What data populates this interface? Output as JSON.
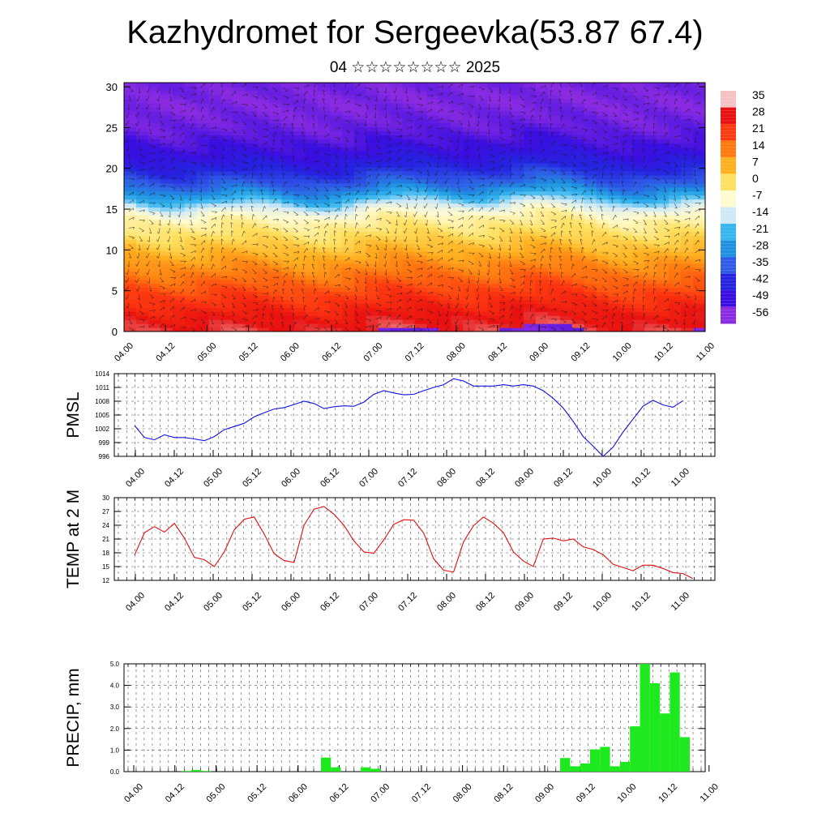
{
  "title": "Kazhydromet for Sergeevka(53.87 67.4)",
  "subtitle": "04 ☆☆☆☆☆☆☆☆ 2025",
  "time_ticks": [
    "04.00",
    "04.12",
    "05.00",
    "05.12",
    "06.00",
    "06.12",
    "07.00",
    "07.12",
    "08.00",
    "08.12",
    "09.00",
    "09.12",
    "10.00",
    "10.12",
    "11.00"
  ],
  "chart_data": [
    {
      "type": "heatmap",
      "title": "",
      "ylabel": "",
      "y_ticks": [
        "0",
        "5",
        "10",
        "15",
        "20",
        "25",
        "30"
      ],
      "ylim": [
        0,
        30.5
      ],
      "colorbar": {
        "labels": [
          "35",
          "28",
          "21",
          "14",
          "7",
          "0",
          "-7",
          "-14",
          "-21",
          "-28",
          "-35",
          "-42",
          "-49",
          "-56"
        ],
        "colors": [
          "#f4c2c2",
          "#e81010",
          "#ff3a10",
          "#ff7a10",
          "#ffb020",
          "#ffe060",
          "#fffbd0",
          "#cfe9f7",
          "#35b6ef",
          "#1f8fe0",
          "#2f5be6",
          "#2424e0",
          "#3a0ee0",
          "#8a2be2"
        ]
      },
      "profile": {
        "heights": [
          0,
          2,
          5,
          8,
          10,
          12,
          14,
          15,
          16,
          17,
          18,
          20,
          22,
          25,
          28,
          30.5
        ],
        "values": [
          30,
          27,
          20,
          12,
          6,
          0,
          -5,
          -10,
          -18,
          -26,
          -33,
          -42,
          -48,
          -53,
          -55,
          -54
        ]
      }
    },
    {
      "type": "line",
      "ylabel": "PMSL",
      "y_ticks": [
        "996",
        "999",
        "1002",
        "1005",
        "1008",
        "1011",
        "1014"
      ],
      "ylim": [
        996,
        1014
      ],
      "series": [
        {
          "color": "#1010e0",
          "values": [
            1002.7,
            1000.1,
            999.6,
            1000.7,
            1000.1,
            1000.1,
            999.8,
            999.4,
            1000.3,
            1001.8,
            1002.5,
            1003.2,
            1004.6,
            1005.5,
            1006.3,
            1006.6,
            1007.3,
            1008.0,
            1007.5,
            1006.4,
            1006.8,
            1007.0,
            1006.9,
            1007.8,
            1009.5,
            1010.3,
            1009.8,
            1009.4,
            1009.5,
            1010.3,
            1011.0,
            1011.6,
            1012.9,
            1012.4,
            1011.3,
            1011.3,
            1011.3,
            1011.6,
            1011.3,
            1011.6,
            1011.3,
            1010.3,
            1008.6,
            1006.5,
            1003.6,
            1000.3,
            998.2,
            996.0,
            998.0,
            1001.3,
            1004.1,
            1006.9,
            1008.2,
            1007.2,
            1006.7,
            1008.1
          ]
        }
      ]
    },
    {
      "type": "line",
      "ylabel": "TEMP at 2 M",
      "y_ticks": [
        "12",
        "15",
        "18",
        "21",
        "24",
        "27",
        "30"
      ],
      "ylim": [
        12,
        30
      ],
      "series": [
        {
          "color": "#e01010",
          "values": [
            17.5,
            22.4,
            23.7,
            22.5,
            24.4,
            21.2,
            17.0,
            16.5,
            15.0,
            18.2,
            23.0,
            25.3,
            25.8,
            22.1,
            17.8,
            16.3,
            15.9,
            24.0,
            27.5,
            28.1,
            26.4,
            24.0,
            20.6,
            18.2,
            17.9,
            20.8,
            24.2,
            25.2,
            25.1,
            22.3,
            16.7,
            14.2,
            13.8,
            20.4,
            23.9,
            25.8,
            24.4,
            22.4,
            18.2,
            16.2,
            15.0,
            21.0,
            21.2,
            20.6,
            21.0,
            19.3,
            18.7,
            17.6,
            15.5,
            14.8,
            14.1,
            15.3,
            15.3,
            14.6,
            13.7,
            13.5,
            12.4
          ]
        }
      ]
    },
    {
      "type": "bar",
      "ylabel": "PRECIP, mm",
      "y_ticks": [
        "0.0",
        "1.0",
        "2.0",
        "3.0",
        "4.0",
        "5.0"
      ],
      "ylim": [
        0,
        5
      ],
      "bar_color": "#1ee81e",
      "values": [
        0,
        0,
        0,
        0,
        0,
        0,
        0.03,
        0.08,
        0.03,
        0,
        0,
        0,
        0,
        0,
        0,
        0,
        0,
        0,
        0,
        0,
        0.65,
        0.2,
        0,
        0,
        0.2,
        0.13,
        0,
        0,
        0,
        0,
        0,
        0,
        0,
        0,
        0,
        0,
        0,
        0,
        0,
        0,
        0,
        0,
        0,
        0,
        0.63,
        0.25,
        0.38,
        1.03,
        1.15,
        0.25,
        0.45,
        2.1,
        5.0,
        4.1,
        2.7,
        4.6,
        1.6
      ]
    }
  ]
}
